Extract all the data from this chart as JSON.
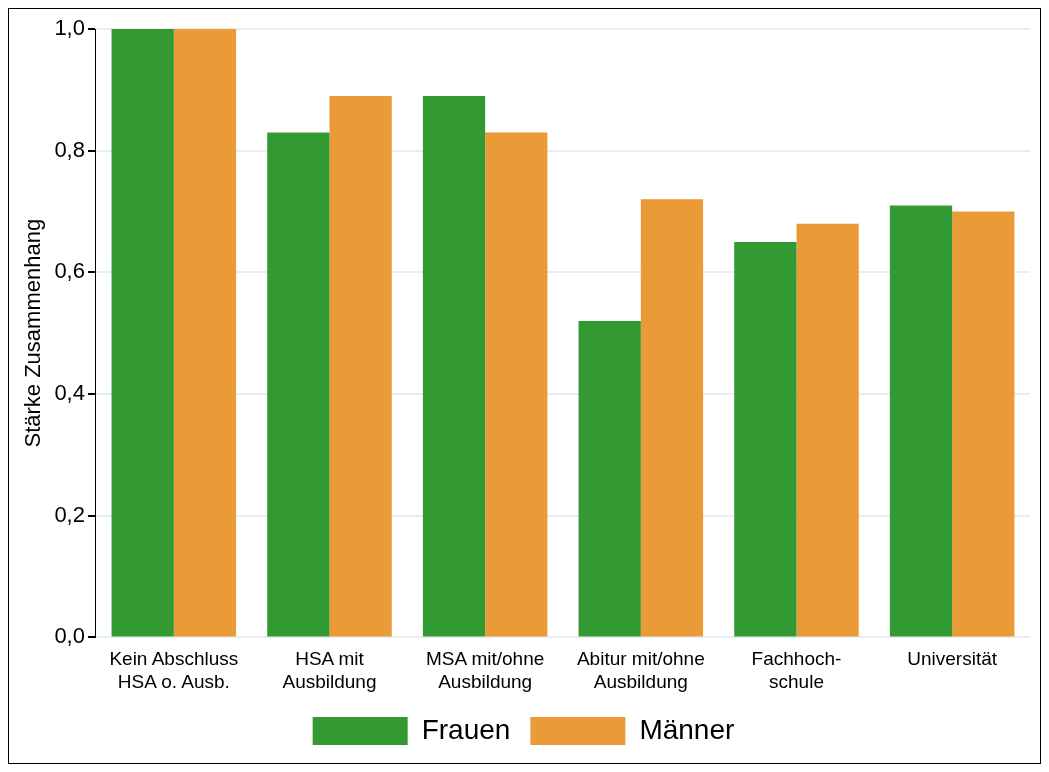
{
  "chart_data": {
    "type": "bar",
    "ylabel": "Stärke Zusammenhang",
    "categories": [
      "Kein Abschluss\nHSA o. Ausb.",
      "HSA mit\nAusbildung",
      "MSA mit/ohne\nAusbildung",
      "Abitur mit/ohne\nAusbildung",
      "Fachhoch-\nschule",
      "Universität"
    ],
    "series": [
      {
        "name": "Frauen",
        "color": "#339933",
        "values": [
          1.0,
          0.83,
          0.89,
          0.52,
          0.65,
          0.71
        ]
      },
      {
        "name": "Männer",
        "color": "#eb9a38",
        "values": [
          1.0,
          0.89,
          0.83,
          0.72,
          0.68,
          0.7
        ]
      }
    ],
    "ylim": [
      0,
      1
    ],
    "yticks": [
      {
        "value": 0,
        "label": "0,0"
      },
      {
        "value": 0.2,
        "label": "0,2"
      },
      {
        "value": 0.4,
        "label": "0,4"
      },
      {
        "value": 0.6,
        "label": "0,6"
      },
      {
        "value": 0.8,
        "label": "0,8"
      },
      {
        "value": 1,
        "label": "1,0"
      }
    ],
    "grid": "y",
    "legend": "bottom"
  }
}
